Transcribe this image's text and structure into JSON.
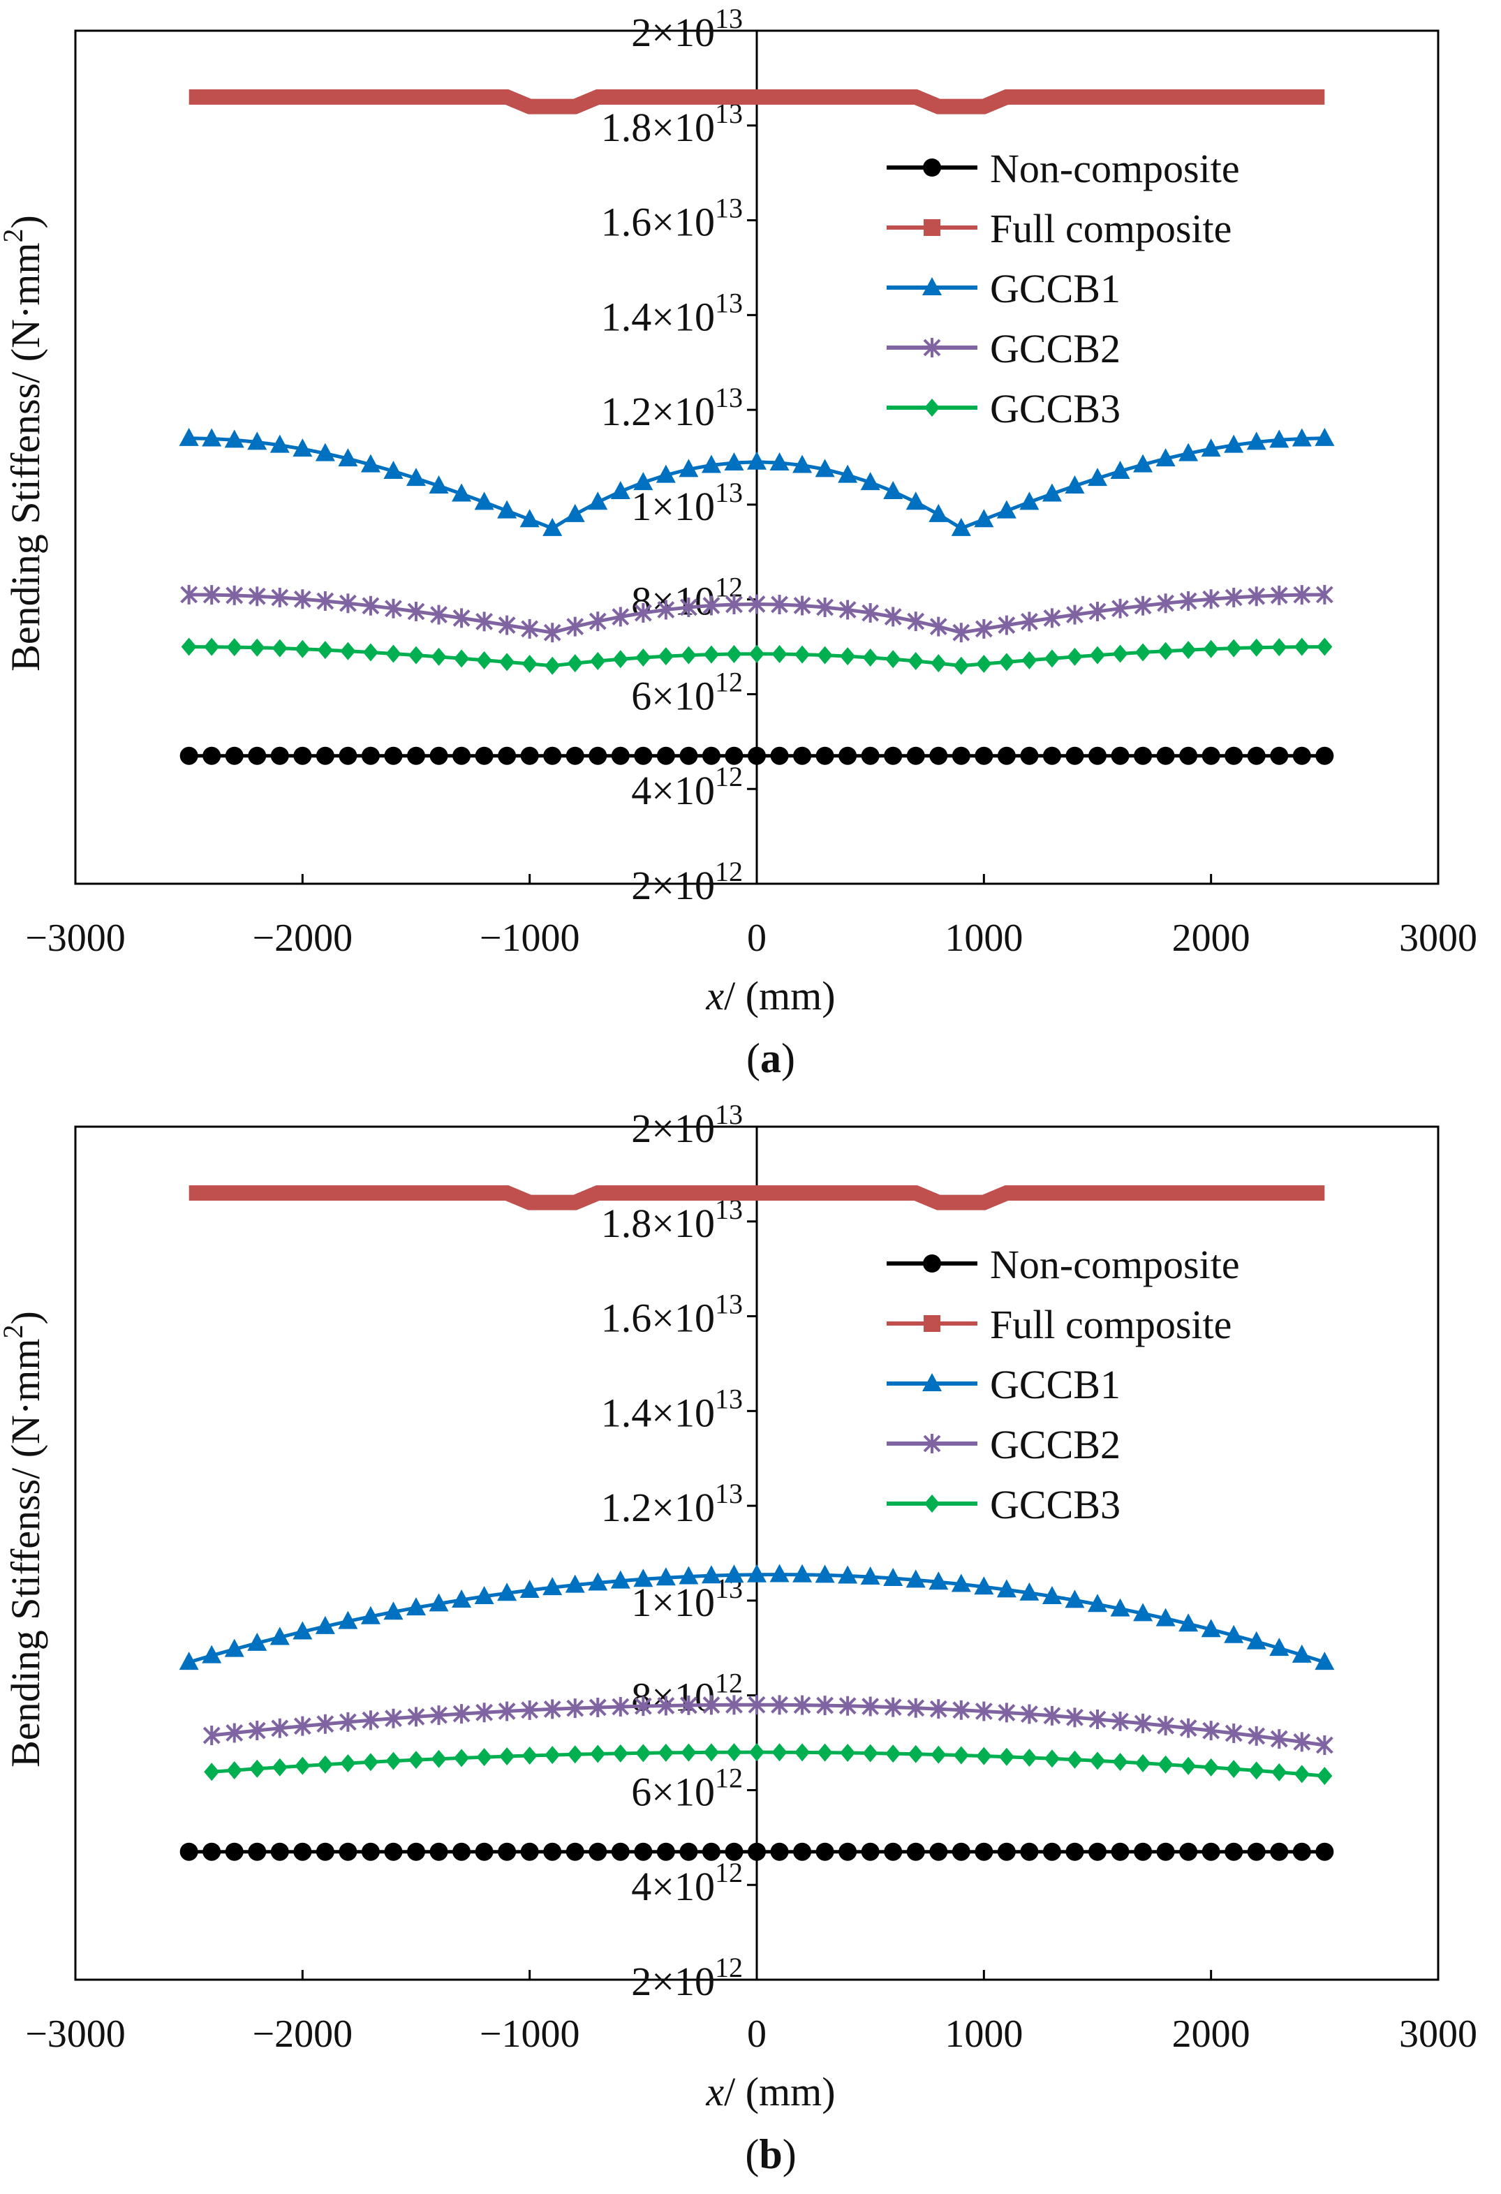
{
  "colors": {
    "non_composite": "#000000",
    "full_composite": "#c0504d",
    "gccb1": "#0070c0",
    "gccb2": "#8064a2",
    "gccb3": "#00b050",
    "axis": "#000000"
  },
  "ytick_base": "×10",
  "chart_data": [
    {
      "type": "line",
      "panel_label": "a",
      "xlabel_var": "x",
      "xlabel_unit": "/ (mm)",
      "ylabel": "Bending Stiffenss/ (N·mm",
      "ylabel_sup": "2",
      "ylabel_close": ")",
      "xlim": [
        -3000,
        3000
      ],
      "ylim": [
        2000000000000.0,
        20000000000000.0
      ],
      "xticks": [
        {
          "value": -3000,
          "label": "−3000"
        },
        {
          "value": -2000,
          "label": "−2000"
        },
        {
          "value": -1000,
          "label": "−1000"
        },
        {
          "value": 0,
          "label": "0"
        },
        {
          "value": 1000,
          "label": "1000"
        },
        {
          "value": 2000,
          "label": "2000"
        },
        {
          "value": 3000,
          "label": "3000"
        }
      ],
      "yticks": [
        {
          "value": 2000000000000.0,
          "mant": "2",
          "exp": "12"
        },
        {
          "value": 4000000000000.0,
          "mant": "4",
          "exp": "12"
        },
        {
          "value": 6000000000000.0,
          "mant": "6",
          "exp": "12"
        },
        {
          "value": 8000000000000.0,
          "mant": "8",
          "exp": "12"
        },
        {
          "value": 10000000000000.0,
          "mant": "1",
          "exp": "13"
        },
        {
          "value": 12000000000000.0,
          "mant": "1.2",
          "exp": "13"
        },
        {
          "value": 14000000000000.0,
          "mant": "1.4",
          "exp": "13"
        },
        {
          "value": 16000000000000.0,
          "mant": "1.6",
          "exp": "13"
        },
        {
          "value": 18000000000000.0,
          "mant": "1.8",
          "exp": "13"
        },
        {
          "value": 20000000000000.0,
          "mant": "2",
          "exp": "13"
        }
      ],
      "series": [
        {
          "name": "Non-composite",
          "key": "non_composite",
          "marker": "circle",
          "x_range": [
            -2500,
            2500
          ],
          "n": 51,
          "shape": "flat",
          "base": 4700000000000.0
        },
        {
          "name": "Full composite",
          "key": "full_composite",
          "marker": "square",
          "x_range": [
            -2500,
            2500
          ],
          "n": 51,
          "shape": "notch",
          "base": 18600000000000.0,
          "dip": 200000000000.0,
          "dip_x": 900
        },
        {
          "name": "GCCB1",
          "key": "gccb1",
          "marker": "triangle",
          "x_range": [
            -2500,
            2500
          ],
          "n": 51,
          "shape": "vdip",
          "end": 11400000000000.0,
          "center": 10900000000000.0,
          "dip": 9500000000000.0,
          "dip_x": 900
        },
        {
          "name": "GCCB2",
          "key": "gccb2",
          "marker": "asterisk",
          "x_range": [
            -2500,
            2500
          ],
          "n": 51,
          "shape": "vdip",
          "end": 8100000000000.0,
          "center": 7900000000000.0,
          "dip": 7300000000000.0,
          "dip_x": 900
        },
        {
          "name": "GCCB3",
          "key": "gccb3",
          "marker": "diamond",
          "x_range": [
            -2500,
            2500
          ],
          "n": 51,
          "shape": "vdip",
          "end": 7000000000000.0,
          "center": 6850000000000.0,
          "dip": 6600000000000.0,
          "dip_x": 900
        }
      ]
    },
    {
      "type": "line",
      "panel_label": "b",
      "xlabel_var": "x",
      "xlabel_unit": "/ (mm)",
      "ylabel": "Bending Stiffenss/ (N·mm",
      "ylabel_sup": "2",
      "ylabel_close": ")",
      "xlim": [
        -3000,
        3000
      ],
      "ylim": [
        2000000000000.0,
        20000000000000.0
      ],
      "xticks": [
        {
          "value": -3000,
          "label": "−3000"
        },
        {
          "value": -2000,
          "label": "−2000"
        },
        {
          "value": -1000,
          "label": "−1000"
        },
        {
          "value": 0,
          "label": "0"
        },
        {
          "value": 1000,
          "label": "1000"
        },
        {
          "value": 2000,
          "label": "2000"
        },
        {
          "value": 3000,
          "label": "3000"
        }
      ],
      "yticks": [
        {
          "value": 2000000000000.0,
          "mant": "2",
          "exp": "12"
        },
        {
          "value": 4000000000000.0,
          "mant": "4",
          "exp": "12"
        },
        {
          "value": 6000000000000.0,
          "mant": "6",
          "exp": "12"
        },
        {
          "value": 8000000000000.0,
          "mant": "8",
          "exp": "12"
        },
        {
          "value": 10000000000000.0,
          "mant": "1",
          "exp": "13"
        },
        {
          "value": 12000000000000.0,
          "mant": "1.2",
          "exp": "13"
        },
        {
          "value": 14000000000000.0,
          "mant": "1.4",
          "exp": "13"
        },
        {
          "value": 16000000000000.0,
          "mant": "1.6",
          "exp": "13"
        },
        {
          "value": 18000000000000.0,
          "mant": "1.8",
          "exp": "13"
        },
        {
          "value": 20000000000000.0,
          "mant": "2",
          "exp": "13"
        }
      ],
      "series": [
        {
          "name": "Non-composite",
          "key": "non_composite",
          "marker": "circle",
          "x_range": [
            -2500,
            2500
          ],
          "n": 51,
          "shape": "flat",
          "base": 4700000000000.0
        },
        {
          "name": "Full composite",
          "key": "full_composite",
          "marker": "square",
          "x_range": [
            -2500,
            2500
          ],
          "n": 51,
          "shape": "notch",
          "base": 18600000000000.0,
          "dip": 200000000000.0,
          "dip_x": 900
        },
        {
          "name": "GCCB1",
          "key": "gccb1",
          "marker": "triangle",
          "x_range": [
            -2500,
            2500
          ],
          "n": 51,
          "shape": "arch",
          "left": 8700000000000.0,
          "peak": 10550000000000.0,
          "peak_x": 100,
          "right": 8700000000000.0
        },
        {
          "name": "GCCB2",
          "key": "gccb2",
          "marker": "asterisk",
          "x_range": [
            -2400,
            2500
          ],
          "n": 50,
          "shape": "arch",
          "left": 7100000000000.0,
          "peak": 7800000000000.0,
          "peak_x": 0,
          "right": 6950000000000.0
        },
        {
          "name": "GCCB3",
          "key": "gccb3",
          "marker": "diamond",
          "x_range": [
            -2400,
            2500
          ],
          "n": 50,
          "shape": "arch",
          "left": 6350000000000.0,
          "peak": 6800000000000.0,
          "peak_x": 0,
          "right": 6300000000000.0
        }
      ]
    }
  ]
}
